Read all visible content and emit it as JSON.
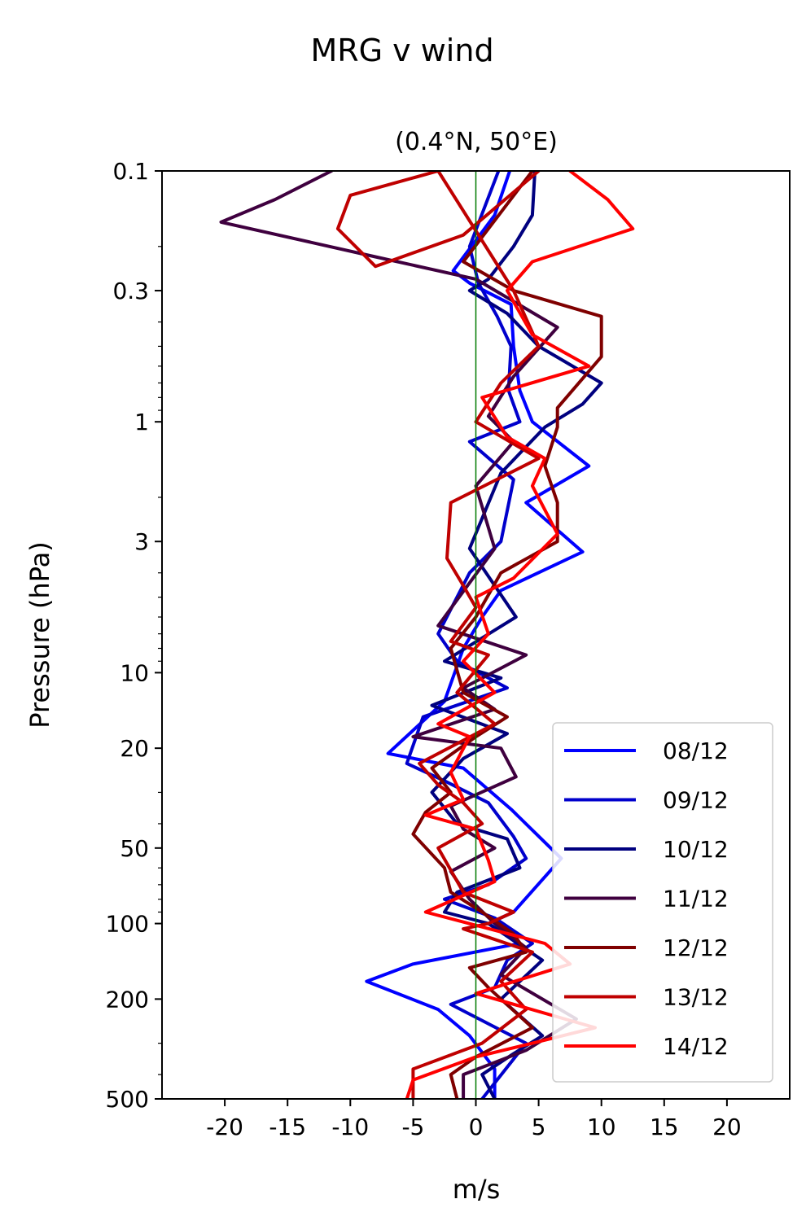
{
  "figure": {
    "title": "MRG v wind",
    "subtitle": "(0.4°N, 50°E)"
  },
  "colors": {
    "zero_line": "#007a00",
    "axes": "#000000",
    "background": "#ffffff"
  },
  "chart_data": {
    "type": "line",
    "orientation": "vertical profile (x = wind, y = pressure)",
    "title": "(0.4°N, 50°E)",
    "xlabel": "m/s",
    "ylabel": "Pressure (hPa)",
    "xlim": [
      -25,
      25
    ],
    "ylim": [
      500,
      0.1
    ],
    "yscale": "log",
    "y_inverted": true,
    "x_ticks": [
      -20,
      -15,
      -10,
      -5,
      0,
      5,
      10,
      15,
      20
    ],
    "x_tick_labels": [
      "-20",
      "-15",
      "-10",
      "-5",
      "0",
      "5",
      "10",
      "15",
      "20"
    ],
    "y_ticks": [
      0.1,
      0.3,
      1,
      3,
      10,
      20,
      50,
      100,
      200,
      500
    ],
    "y_tick_labels": [
      "0.1",
      "0.3",
      "1",
      "3",
      "10",
      "20",
      "50",
      "100",
      "200",
      "500"
    ],
    "grid": false,
    "legend_position": "lower right",
    "zero_reference_line": 0,
    "series": [
      {
        "name": "08/12",
        "color": "#0000ff",
        "points": [
          [
            2.7,
            0.1
          ],
          [
            1.5,
            0.15
          ],
          [
            -1.8,
            0.25
          ],
          [
            -0.5,
            0.28
          ],
          [
            2.8,
            0.34
          ],
          [
            3,
            0.5
          ],
          [
            3.5,
            0.75
          ],
          [
            4.5,
            1.0
          ],
          [
            9,
            1.5
          ],
          [
            4,
            2.1
          ],
          [
            8.5,
            3.3
          ],
          [
            2,
            4.7
          ],
          [
            0.5,
            6
          ],
          [
            -1,
            8
          ],
          [
            -2.5,
            13
          ],
          [
            -7,
            21
          ],
          [
            -1,
            24
          ],
          [
            2.8,
            35
          ],
          [
            6.8,
            55
          ],
          [
            3,
            90
          ],
          [
            1,
            100
          ],
          [
            3.5,
            120
          ],
          [
            -5,
            145
          ],
          [
            -8.7,
            170
          ],
          [
            -3,
            220
          ],
          [
            -0.5,
            280
          ],
          [
            1.5,
            380
          ],
          [
            1.5,
            500
          ]
        ]
      },
      {
        "name": "09/12",
        "color": "#0000cc",
        "points": [
          [
            1.8,
            0.1
          ],
          [
            -0.5,
            0.2
          ],
          [
            0.2,
            0.28
          ],
          [
            1.7,
            0.38
          ],
          [
            2.8,
            0.5
          ],
          [
            2.6,
            0.75
          ],
          [
            3.5,
            1.0
          ],
          [
            -0.5,
            1.2
          ],
          [
            3,
            1.7
          ],
          [
            2,
            3
          ],
          [
            -0.5,
            4
          ],
          [
            -3,
            7
          ],
          [
            -1.5,
            9
          ],
          [
            2.5,
            11.5
          ],
          [
            -4.2,
            15
          ],
          [
            -5.5,
            23
          ],
          [
            -2.5,
            27
          ],
          [
            1,
            33
          ],
          [
            3,
            45
          ],
          [
            4,
            55
          ],
          [
            1,
            70
          ],
          [
            -2.5,
            80
          ],
          [
            1.5,
            95
          ],
          [
            4.5,
            120
          ],
          [
            2.5,
            140
          ],
          [
            1.5,
            180
          ],
          [
            -2,
            210
          ],
          [
            4,
            300
          ],
          [
            0.5,
            500
          ]
        ]
      },
      {
        "name": "10/12",
        "color": "#00007f",
        "points": [
          [
            4.7,
            0.1
          ],
          [
            4.5,
            0.15
          ],
          [
            3,
            0.2
          ],
          [
            1,
            0.27
          ],
          [
            -0.5,
            0.3
          ],
          [
            2.5,
            0.37
          ],
          [
            5,
            0.5
          ],
          [
            10,
            0.7
          ],
          [
            8.5,
            0.85
          ],
          [
            5.5,
            1.05
          ],
          [
            2,
            1.6
          ],
          [
            -0.5,
            3.2
          ],
          [
            3.2,
            6
          ],
          [
            -2.5,
            9
          ],
          [
            2,
            10.5
          ],
          [
            -3.5,
            13.5
          ],
          [
            2.5,
            17.5
          ],
          [
            -1,
            22
          ],
          [
            -3.5,
            30
          ],
          [
            -1.5,
            40
          ],
          [
            2.5,
            46
          ],
          [
            3.5,
            60
          ],
          [
            -1.5,
            75
          ],
          [
            -2.5,
            90
          ],
          [
            1,
            100
          ],
          [
            5.3,
            140
          ],
          [
            2,
            200
          ],
          [
            5.3,
            280
          ],
          [
            3,
            330
          ],
          [
            0.5,
            400
          ],
          [
            1.5,
            500
          ]
        ]
      },
      {
        "name": "11/12",
        "color": "#3f003f",
        "points": [
          [
            -11.5,
            0.1
          ],
          [
            -16,
            0.13
          ],
          [
            -20.3,
            0.16
          ],
          [
            -8,
            0.22
          ],
          [
            0,
            0.27
          ],
          [
            6.5,
            0.42
          ],
          [
            3,
            0.66
          ],
          [
            1,
            0.95
          ],
          [
            3,
            1.2
          ],
          [
            0,
            1.8
          ],
          [
            1.5,
            3.2
          ],
          [
            -3,
            6.5
          ],
          [
            4,
            8.5
          ],
          [
            -1,
            11.5
          ],
          [
            1.5,
            14
          ],
          [
            -5,
            18
          ],
          [
            2,
            20
          ],
          [
            3.2,
            26
          ],
          [
            -2,
            34
          ],
          [
            -1,
            42
          ],
          [
            1.5,
            50
          ],
          [
            -2,
            62
          ],
          [
            -0.5,
            80
          ],
          [
            1.5,
            100
          ],
          [
            4,
            125
          ],
          [
            2,
            160
          ],
          [
            8,
            240
          ],
          [
            4,
            320
          ],
          [
            -1,
            400
          ],
          [
            -1,
            500
          ]
        ]
      },
      {
        "name": "12/12",
        "color": "#7f0000",
        "points": [
          [
            4.5,
            0.1
          ],
          [
            -1,
            0.23
          ],
          [
            3,
            0.3
          ],
          [
            10,
            0.38
          ],
          [
            10,
            0.55
          ],
          [
            6.5,
            0.88
          ],
          [
            6.5,
            1.05
          ],
          [
            5.5,
            1.5
          ],
          [
            6.5,
            2.1
          ],
          [
            6.5,
            3
          ],
          [
            2,
            4
          ],
          [
            0,
            6
          ],
          [
            -2,
            8
          ],
          [
            -1,
            12
          ],
          [
            2.5,
            15
          ],
          [
            0,
            18
          ],
          [
            -3.5,
            24
          ],
          [
            -2,
            30
          ],
          [
            -4,
            36
          ],
          [
            -5,
            44
          ],
          [
            -2.5,
            60
          ],
          [
            -2,
            75
          ],
          [
            0.5,
            90
          ],
          [
            3,
            110
          ],
          [
            4,
            130
          ],
          [
            -0.5,
            150
          ],
          [
            1,
            180
          ],
          [
            4.5,
            260
          ],
          [
            0,
            340
          ],
          [
            -2,
            400
          ],
          [
            -1.5,
            500
          ]
        ]
      },
      {
        "name": "13/12",
        "color": "#bf0000",
        "points": [
          [
            5,
            0.1
          ],
          [
            -1,
            0.18
          ],
          [
            -8,
            0.24
          ],
          [
            -11,
            0.17
          ],
          [
            -10,
            0.125
          ],
          [
            -3,
            0.1
          ],
          [
            3,
            0.3
          ],
          [
            5,
            0.5
          ],
          [
            2,
            0.7
          ],
          [
            0,
            1.0
          ],
          [
            5,
            1.4
          ],
          [
            -2,
            2.1
          ],
          [
            -2.3,
            3.5
          ],
          [
            -1,
            4.5
          ],
          [
            0,
            5.5
          ],
          [
            -2,
            7.5
          ],
          [
            1,
            8.5
          ],
          [
            -1.5,
            12
          ],
          [
            1.5,
            16
          ],
          [
            -4.5,
            23
          ],
          [
            -3,
            28
          ],
          [
            -1,
            33
          ],
          [
            0.5,
            40
          ],
          [
            -3,
            50
          ],
          [
            -1,
            75
          ],
          [
            3,
            90
          ],
          [
            1,
            100
          ],
          [
            -1,
            105
          ],
          [
            4.5,
            130
          ],
          [
            2,
            170
          ],
          [
            4,
            220
          ],
          [
            0.5,
            300
          ],
          [
            -5,
            380
          ],
          [
            -5,
            500
          ]
        ]
      },
      {
        "name": "14/12",
        "color": "#ff0000",
        "points": [
          [
            7.5,
            0.1
          ],
          [
            10.5,
            0.13
          ],
          [
            12.5,
            0.17
          ],
          [
            4.5,
            0.23
          ],
          [
            2.5,
            0.3
          ],
          [
            4.5,
            0.45
          ],
          [
            9,
            0.6
          ],
          [
            0.5,
            0.8
          ],
          [
            2.5,
            1.15
          ],
          [
            5.5,
            1.4
          ],
          [
            4.5,
            1.8
          ],
          [
            6.5,
            2.8
          ],
          [
            3,
            4.2
          ],
          [
            0,
            5
          ],
          [
            1,
            7
          ],
          [
            -1,
            9
          ],
          [
            1.5,
            12
          ],
          [
            -3,
            16
          ],
          [
            -0.5,
            18
          ],
          [
            -2,
            25
          ],
          [
            -1,
            32
          ],
          [
            -4,
            37
          ],
          [
            0,
            42
          ],
          [
            1,
            56
          ],
          [
            1.5,
            68
          ],
          [
            -4,
            90
          ],
          [
            5.5,
            120
          ],
          [
            7.5,
            145
          ],
          [
            0,
            190
          ],
          [
            9.5,
            260
          ],
          [
            4.5,
            300
          ],
          [
            0,
            340
          ],
          [
            -5,
            420
          ],
          [
            -5.5,
            500
          ]
        ]
      }
    ]
  }
}
